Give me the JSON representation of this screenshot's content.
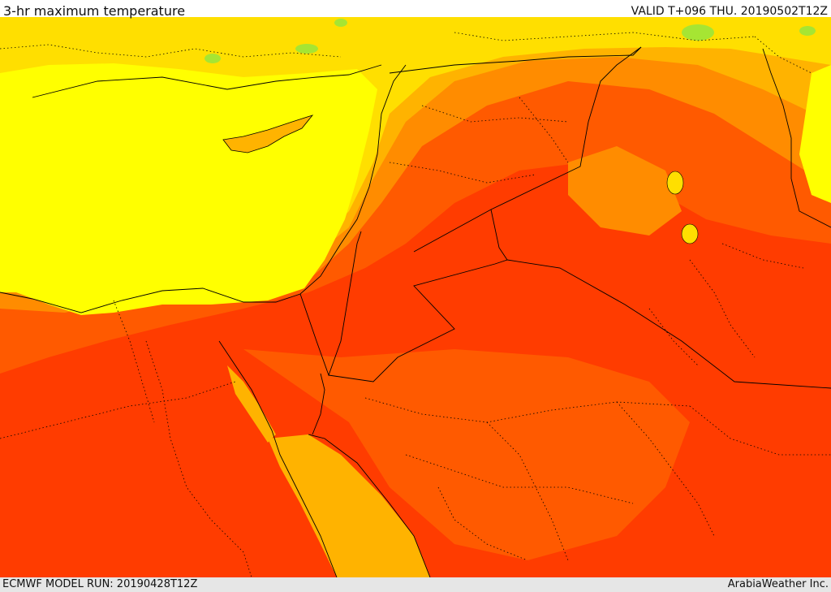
{
  "header": {
    "title": "3-hr maximum temperature",
    "valid": "VALID T+096 THU. 20190502T12Z"
  },
  "footer": {
    "model_run": "ECMWF MODEL RUN: 20190428T12Z",
    "credit": "ArabiaWeather Inc."
  },
  "map": {
    "field": "3-hr maximum temperature",
    "palette": [
      "#a6e533",
      "#ffff00",
      "#ffdf00",
      "#ffb300",
      "#ff8c00",
      "#ff5a00",
      "#ff3c00",
      "#ff2400"
    ]
  }
}
